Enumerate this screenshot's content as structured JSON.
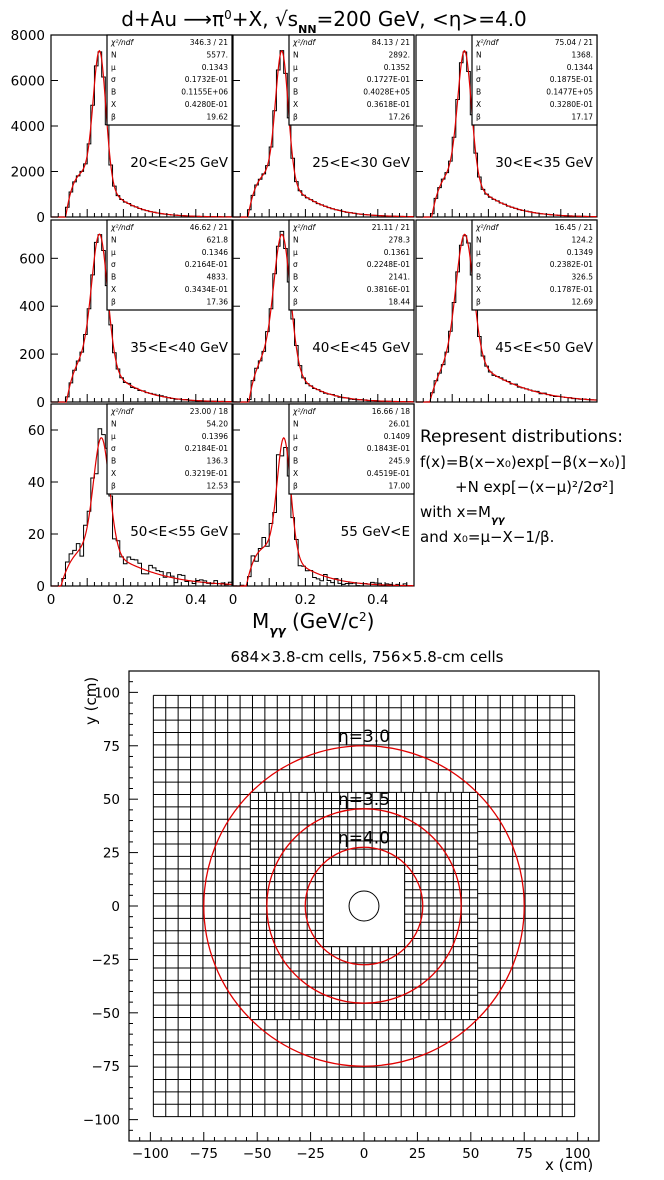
{
  "chart_data": [
    {
      "type": "histogram_grid",
      "title": "d+Au → π⁰+X, √s_NN=200 GeV, <η>=4.0",
      "title_parts": {
        "a": "d+Au ",
        "b": "π",
        "c": "0",
        "d": "+X, ",
        "e": "√s",
        "f": "NN",
        "g": "=200 GeV, <η>=4.0"
      },
      "xlabel": {
        "a": "M",
        "b": "γγ",
        "c": " (GeV/c",
        "d": "2",
        "e": ")"
      },
      "xlim": [
        0,
        0.5
      ],
      "xticks": [
        0,
        0.2,
        0.4
      ],
      "xtick_labels": [
        "0",
        "0.2",
        "0.4"
      ],
      "stat_keys": [
        "χ²/ndf",
        "N",
        "μ",
        "σ",
        "B",
        "X",
        "β"
      ],
      "fit_legend": {
        "heading": "Represent distributions:",
        "line1": "f(x)=B(x−x₀)exp[−β(x−x₀)]",
        "line2": "+N exp[−(x−μ)²/2σ²]",
        "line3": "with x=M",
        "line3_sub": "γγ",
        "line4": "and x₀=μ−X−1/β."
      },
      "panels": [
        {
          "label": "20<E<25 GeV",
          "ylim": [
            0,
            8000
          ],
          "yticks": [
            0,
            2000,
            4000,
            6000,
            8000
          ],
          "stats": {
            "chi2": "346.3",
            "ndf": "21",
            "N": "5577.",
            "mu": "0.1343",
            "sigma": "0.1732E-01",
            "B": "0.1155E+06",
            "X": "0.4280E-01",
            "beta": "19.62"
          }
        },
        {
          "label": "25<E<30 GeV",
          "ylim": [
            0,
            8000
          ],
          "yticks": [
            0,
            2000,
            4000,
            6000,
            8000
          ],
          "stats": {
            "chi2": "84.13",
            "ndf": "21",
            "N": "2892.",
            "mu": "0.1352",
            "sigma": "0.1727E-01",
            "B": "0.4028E+05",
            "X": "0.3618E-01",
            "beta": "17.26"
          }
        },
        {
          "label": "30<E<35 GeV",
          "ylim": [
            0,
            8000
          ],
          "yticks": [
            0,
            2000,
            4000,
            6000,
            8000
          ],
          "stats": {
            "chi2": "75.04",
            "ndf": "21",
            "N": "1368.",
            "mu": "0.1344",
            "sigma": "0.1875E-01",
            "B": "0.1477E+05",
            "X": "0.3280E-01",
            "beta": "17.17"
          }
        },
        {
          "label": "35<E<40 GeV",
          "ylim": [
            0,
            760
          ],
          "yticks": [
            0,
            200,
            400,
            600
          ],
          "stats": {
            "chi2": "46.62",
            "ndf": "21",
            "N": "621.8",
            "mu": "0.1346",
            "sigma": "0.2164E-01",
            "B": "4833.",
            "X": "0.3434E-01",
            "beta": "17.36"
          }
        },
        {
          "label": "40<E<45 GeV",
          "ylim": [
            0,
            760
          ],
          "yticks": [
            0,
            200,
            400,
            600
          ],
          "stats": {
            "chi2": "21.11",
            "ndf": "21",
            "N": "278.3",
            "mu": "0.1361",
            "sigma": "0.2248E-01",
            "B": "2141.",
            "X": "0.3816E-01",
            "beta": "18.44"
          }
        },
        {
          "label": "45<E<50 GeV",
          "ylim": [
            0,
            760
          ],
          "yticks": [
            0,
            200,
            400,
            600
          ],
          "stats": {
            "chi2": "16.45",
            "ndf": "21",
            "N": "124.2",
            "mu": "0.1349",
            "sigma": "0.2382E-01",
            "B": "326.5",
            "X": "0.1787E-01",
            "beta": "12.69"
          }
        },
        {
          "label": "50<E<55 GeV",
          "ylim": [
            0,
            70
          ],
          "yticks": [
            0,
            20,
            40,
            60
          ],
          "stats": {
            "chi2": "23.00",
            "ndf": "18",
            "N": "54.20",
            "mu": "0.1396",
            "sigma": "0.2184E-01",
            "B": "136.3",
            "X": "0.3219E-01",
            "beta": "12.53"
          }
        },
        {
          "label": "55 GeV<E",
          "ylim": [
            0,
            70
          ],
          "yticks": [
            0,
            20,
            40,
            60
          ],
          "stats": {
            "chi2": "16.66",
            "ndf": "18",
            "N": "26.01",
            "mu": "0.1409",
            "sigma": "0.1843E-01",
            "B": "245.9",
            "X": "0.4519E-01",
            "beta": "17.00"
          }
        }
      ]
    },
    {
      "type": "detector_map",
      "title": "684×3.8-cm cells, 756×5.8-cm cells",
      "xlabel": "x (cm)",
      "ylabel": "y (cm)",
      "xlim": [
        -110,
        110
      ],
      "ylim": [
        -110,
        110
      ],
      "ticks": [
        -100,
        -75,
        -50,
        -25,
        0,
        25,
        50,
        75,
        100
      ],
      "outer_array": {
        "half_width": 98.6,
        "cell_size": 5.8,
        "n_cells": 756
      },
      "inner_array": {
        "half_width": 53.2,
        "cell_size": 3.8,
        "n_cells": 684
      },
      "beam_hole": {
        "half_width": 19,
        "pipe_radius": 7
      },
      "eta_circles": [
        {
          "label": "η=3.0",
          "radius": 75
        },
        {
          "label": "η=3.5",
          "radius": 45.5
        },
        {
          "label": "η=4.0",
          "radius": 27.5
        }
      ],
      "circle_color": "#e00000"
    }
  ]
}
